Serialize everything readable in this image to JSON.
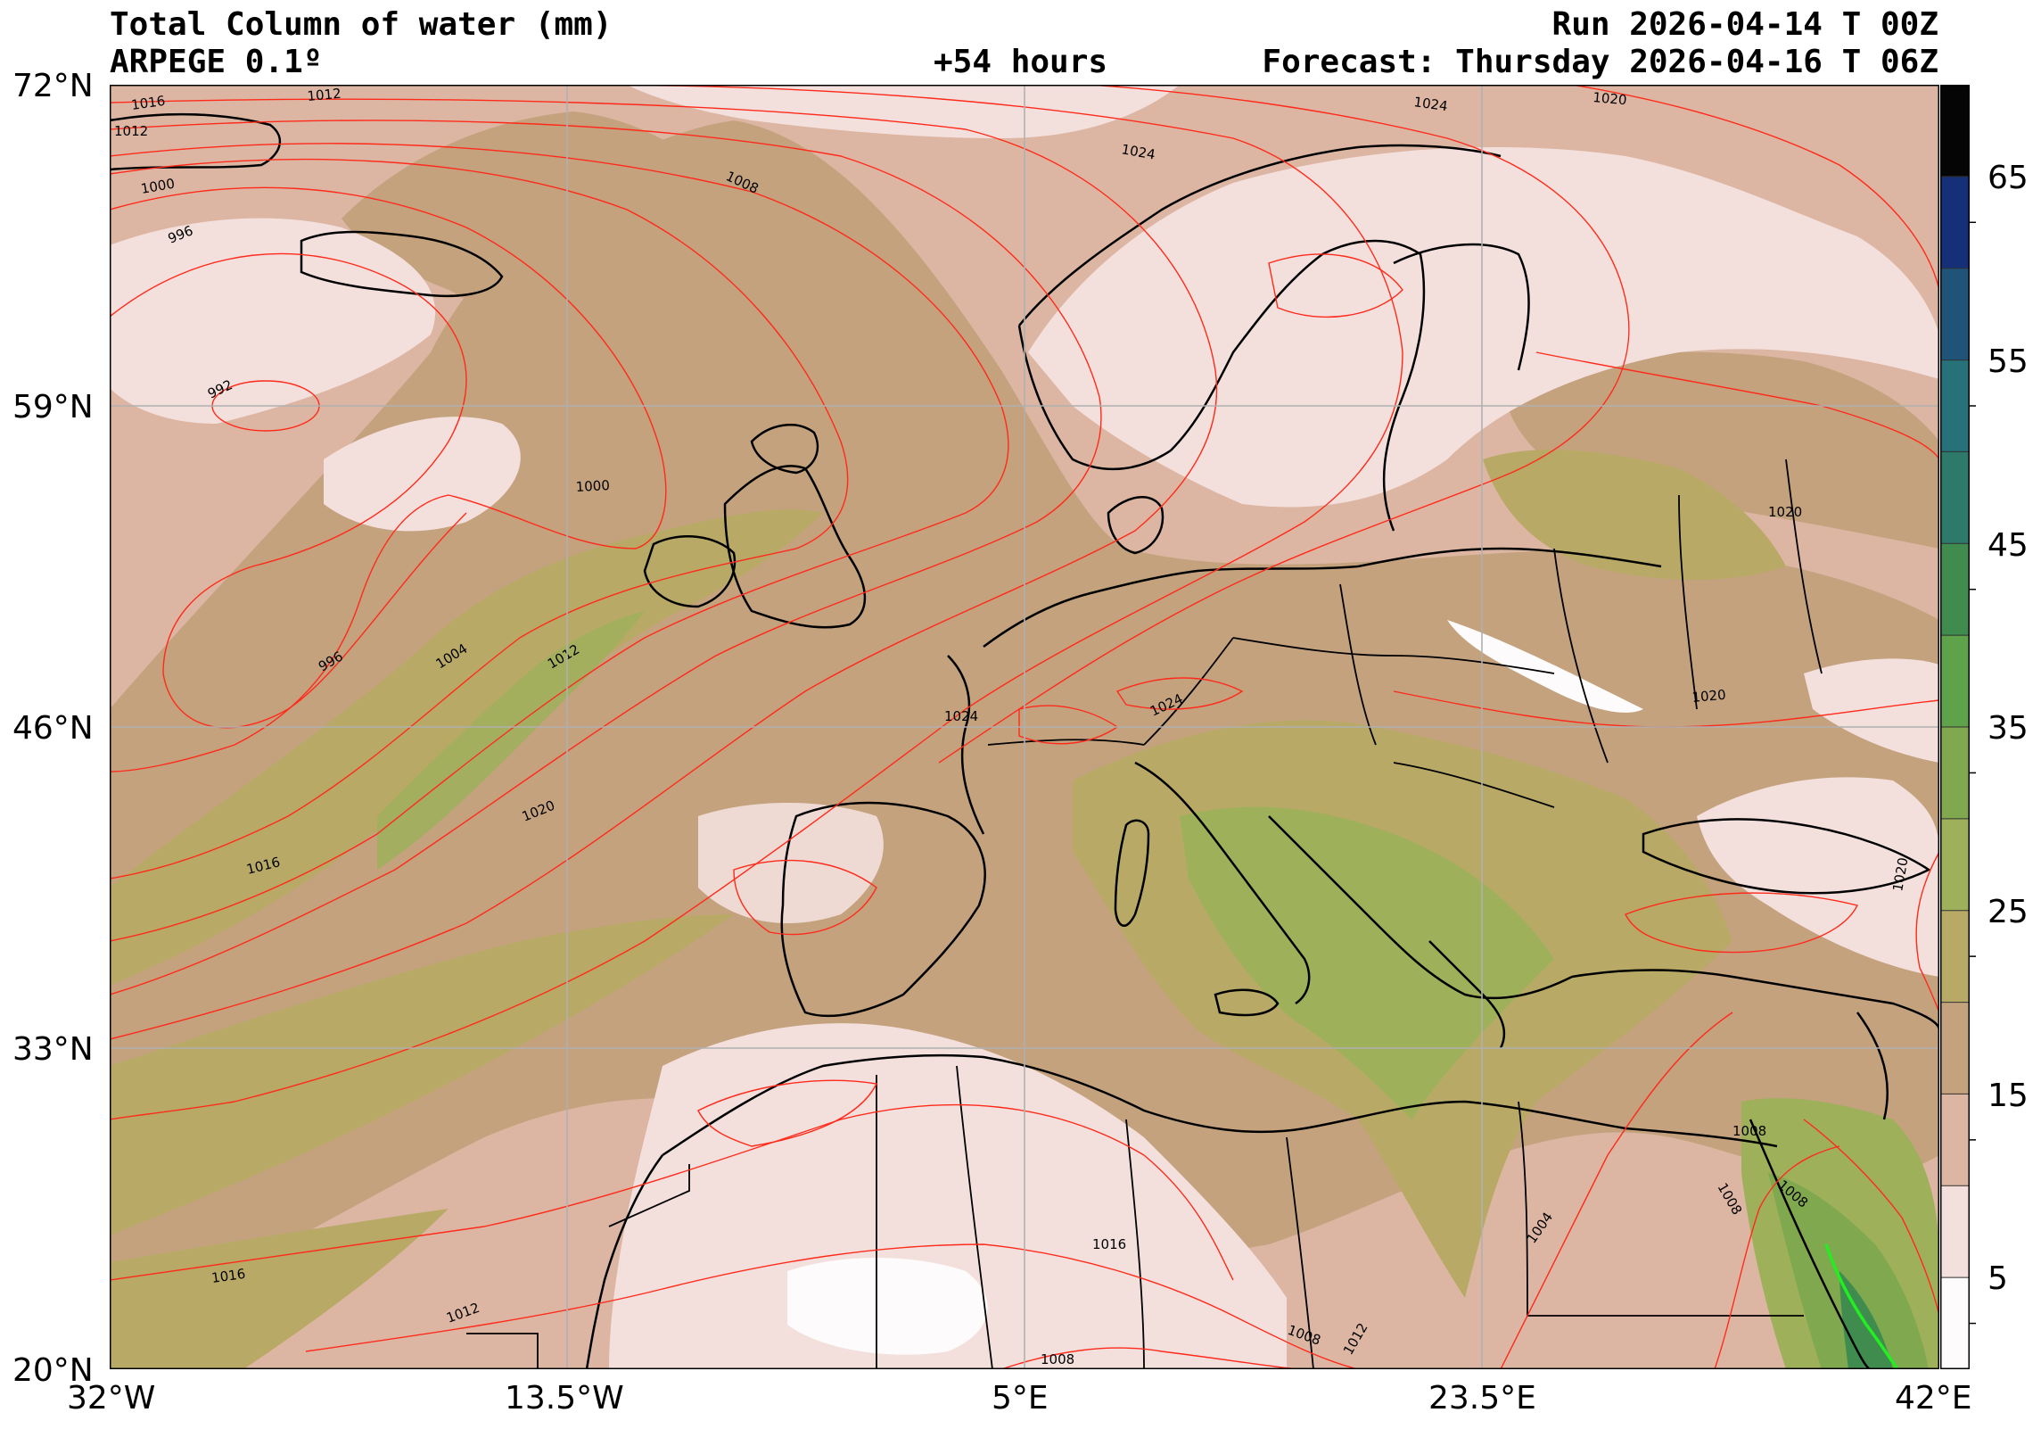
{
  "header": {
    "title": "Total Column of water (mm)",
    "model": "ARPEGE 0.1º",
    "lead": "+54 hours",
    "run": "Run 2026-04-14 T 00Z",
    "forecast": "Forecast: Thursday 2026-04-16 T 06Z"
  },
  "axes": {
    "lat_labels": [
      "72°N",
      "59°N",
      "46°N",
      "33°N",
      "20°N"
    ],
    "lon_labels": [
      "32°W",
      "13.5°W",
      "5°E",
      "23.5°E",
      "42°E"
    ]
  },
  "colorbar": {
    "tick_labels": [
      "65",
      "55",
      "45",
      "35",
      "25",
      "15",
      "5"
    ],
    "colors": [
      "#fdfbfb",
      "#f3e0dd",
      "#ddb6a3",
      "#c4a27e",
      "#b8aa66",
      "#9fb05b",
      "#80a84e",
      "#5ea24a",
      "#3f8c4e",
      "#2e7a6a",
      "#277179",
      "#1f5478",
      "#153078",
      "#050505"
    ]
  },
  "map": {
    "isobar_labels": [
      "1016",
      "1012",
      "1012",
      "1000",
      "996",
      "992",
      "1008",
      "1024",
      "1024",
      "1020",
      "1000",
      "996",
      "1004",
      "1012",
      "1020",
      "1016",
      "1024",
      "1024",
      "1020",
      "1020",
      "1020",
      "1008",
      "1008",
      "1008",
      "1004",
      "1016",
      "1016",
      "1012",
      "1008",
      "1008",
      "1012"
    ],
    "colors": {
      "isobar": "#ff2a1a",
      "coast": "#000000",
      "grid": "#b0b0b0",
      "highlight": "#22ee22"
    }
  }
}
